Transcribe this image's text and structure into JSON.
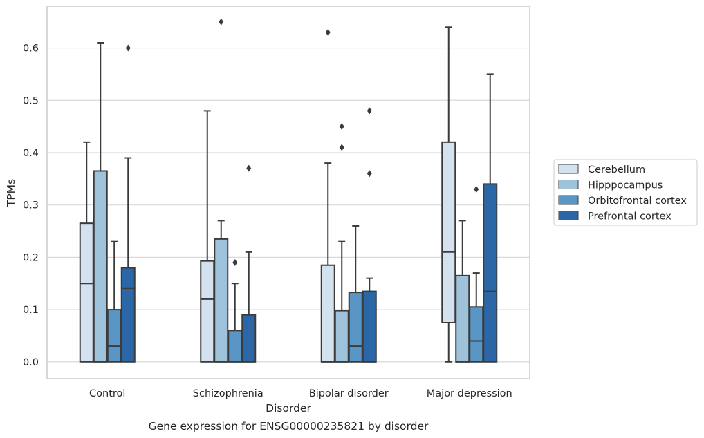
{
  "chart_data": {
    "type": "box",
    "title": "",
    "xlabel": "Disorder",
    "ylabel": "TPMs",
    "caption": "Gene expression for ENSG00000235821 by disorder",
    "ylim": [
      -0.032,
      0.68
    ],
    "yticks": [
      "0.0",
      "0.1",
      "0.2",
      "0.3",
      "0.4",
      "0.5",
      "0.6"
    ],
    "grid": true,
    "legend_position": "right",
    "categories": [
      "Control",
      "Schizophrenia",
      "Bipolar disorder",
      "Major depression"
    ],
    "series": [
      {
        "name": "Cerebellum",
        "color": "#d4e1ef",
        "boxes": [
          {
            "low": 0.0,
            "q1": 0.0,
            "median": 0.15,
            "q3": 0.265,
            "high": 0.42,
            "outliers": []
          },
          {
            "low": 0.0,
            "q1": 0.0,
            "median": 0.12,
            "q3": 0.193,
            "high": 0.48,
            "outliers": []
          },
          {
            "low": 0.0,
            "q1": 0.0,
            "median": 0.0,
            "q3": 0.185,
            "high": 0.38,
            "outliers": [
              0.63
            ]
          },
          {
            "low": 0.0,
            "q1": 0.075,
            "median": 0.21,
            "q3": 0.42,
            "high": 0.64,
            "outliers": []
          }
        ]
      },
      {
        "name": "Hipppocampus",
        "color": "#9dc2da",
        "boxes": [
          {
            "low": 0.0,
            "q1": 0.0,
            "median": 0.0,
            "q3": 0.365,
            "high": 0.61,
            "outliers": []
          },
          {
            "low": 0.0,
            "q1": 0.0,
            "median": 0.0,
            "q3": 0.235,
            "high": 0.27,
            "outliers": [
              0.65
            ]
          },
          {
            "low": 0.0,
            "q1": 0.0,
            "median": 0.0,
            "q3": 0.098,
            "high": 0.23,
            "outliers": [
              0.45,
              0.41
            ]
          },
          {
            "low": 0.0,
            "q1": 0.0,
            "median": 0.0,
            "q3": 0.165,
            "high": 0.27,
            "outliers": []
          }
        ]
      },
      {
        "name": "Orbitofrontal cortex",
        "color": "#5996c5",
        "boxes": [
          {
            "low": 0.0,
            "q1": 0.0,
            "median": 0.03,
            "q3": 0.1,
            "high": 0.23,
            "outliers": []
          },
          {
            "low": 0.0,
            "q1": 0.0,
            "median": 0.0,
            "q3": 0.06,
            "high": 0.15,
            "outliers": [
              0.19
            ]
          },
          {
            "low": 0.0,
            "q1": 0.0,
            "median": 0.03,
            "q3": 0.133,
            "high": 0.26,
            "outliers": []
          },
          {
            "low": 0.0,
            "q1": 0.0,
            "median": 0.04,
            "q3": 0.105,
            "high": 0.17,
            "outliers": [
              0.33
            ]
          }
        ]
      },
      {
        "name": "Prefrontal cortex",
        "color": "#2b67a7",
        "boxes": [
          {
            "low": 0.0,
            "q1": 0.0,
            "median": 0.14,
            "q3": 0.18,
            "high": 0.39,
            "outliers": [
              0.6
            ]
          },
          {
            "low": 0.0,
            "q1": 0.0,
            "median": 0.0,
            "q3": 0.09,
            "high": 0.21,
            "outliers": [
              0.37
            ]
          },
          {
            "low": 0.0,
            "q1": 0.0,
            "median": 0.0,
            "q3": 0.135,
            "high": 0.16,
            "outliers": [
              0.48,
              0.36
            ]
          },
          {
            "low": 0.0,
            "q1": 0.0,
            "median": 0.135,
            "q3": 0.34,
            "high": 0.55,
            "outliers": []
          }
        ]
      }
    ]
  }
}
